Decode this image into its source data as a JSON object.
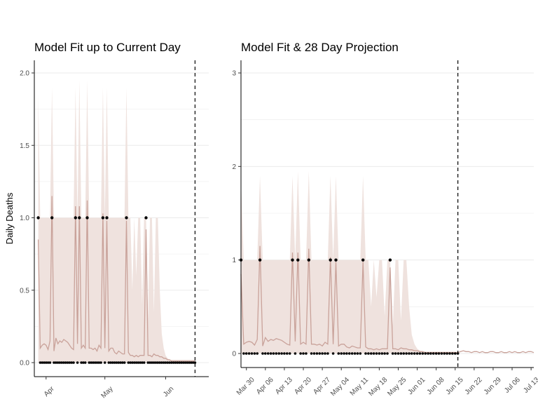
{
  "chart_data": [
    {
      "type": "line",
      "title": "Model Fit up to Current Day",
      "xlabel": "",
      "ylabel": "Daily Deaths",
      "x_range": [
        "2020-03-26",
        "2020-06-23"
      ],
      "ylim": [
        0,
        2.0
      ],
      "y_ticks": [
        {
          "value": 0.0,
          "label": "0.0"
        },
        {
          "value": 0.5,
          "label": "0.5"
        },
        {
          "value": 1.0,
          "label": "1.0"
        },
        {
          "value": 1.5,
          "label": "1.5"
        },
        {
          "value": 2.0,
          "label": "2.0"
        }
      ],
      "x_ticks": [
        {
          "date": "2020-04-01",
          "label": "Apr"
        },
        {
          "date": "2020-05-01",
          "label": "May"
        },
        {
          "date": "2020-06-01",
          "label": "Jun"
        }
      ],
      "current_day": "2020-06-16",
      "grid": true,
      "legend": "none"
    },
    {
      "type": "line",
      "title": "Model Fit & 28 Day Projection",
      "xlabel": "",
      "ylabel": "",
      "x_range": [
        "2020-03-28",
        "2020-07-14"
      ],
      "ylim": [
        0,
        3
      ],
      "y_ticks": [
        {
          "value": 0,
          "label": "0"
        },
        {
          "value": 1,
          "label": "1"
        },
        {
          "value": 2,
          "label": "2"
        },
        {
          "value": 3,
          "label": "3"
        }
      ],
      "x_ticks": [
        {
          "date": "2020-03-30",
          "label": "Mar 30"
        },
        {
          "date": "2020-04-06",
          "label": "Apr 06"
        },
        {
          "date": "2020-04-13",
          "label": "Apr 13"
        },
        {
          "date": "2020-04-20",
          "label": "Apr 20"
        },
        {
          "date": "2020-04-27",
          "label": "Apr 27"
        },
        {
          "date": "2020-05-04",
          "label": "May 04"
        },
        {
          "date": "2020-05-11",
          "label": "May 11"
        },
        {
          "date": "2020-05-18",
          "label": "May 18"
        },
        {
          "date": "2020-05-25",
          "label": "May 25"
        },
        {
          "date": "2020-06-01",
          "label": "Jun 01"
        },
        {
          "date": "2020-06-08",
          "label": "Jun 08"
        },
        {
          "date": "2020-06-15",
          "label": "Jun 15"
        },
        {
          "date": "2020-06-22",
          "label": "Jun 22"
        },
        {
          "date": "2020-06-29",
          "label": "Jun 29"
        },
        {
          "date": "2020-07-06",
          "label": "Jul 06"
        },
        {
          "date": "2020-07-13",
          "label": "Jul 13"
        }
      ],
      "current_day": "2020-06-16",
      "grid": true,
      "legend": "none"
    }
  ],
  "observed": {
    "name": "",
    "start_date": "2020-03-28",
    "values": [
      1,
      0,
      0,
      0,
      0,
      0,
      0,
      1,
      0,
      0,
      0,
      0,
      0,
      0,
      0,
      0,
      0,
      0,
      0,
      1,
      0,
      1,
      0,
      0,
      0,
      1,
      0,
      0,
      0,
      0,
      0,
      0,
      0,
      1,
      0,
      1,
      0,
      0,
      0,
      0,
      0,
      0,
      0,
      0,
      0,
      1,
      0,
      0,
      0,
      0,
      0,
      0,
      0,
      0,
      0,
      1,
      0,
      0,
      0,
      0,
      0,
      0,
      0,
      0,
      0,
      0,
      0,
      0,
      0,
      0,
      0,
      0,
      0,
      0,
      0,
      0,
      0,
      0,
      0,
      0,
      0,
      0,
      0,
      0,
      0,
      0,
      0,
      0,
      0,
      0,
      0
    ]
  },
  "fitted": {
    "start_date": "2020-03-28",
    "values": [
      0.85,
      0.1,
      0.12,
      0.13,
      0.12,
      0.09,
      0.15,
      1.15,
      0.08,
      0.17,
      0.13,
      0.15,
      0.14,
      0.16,
      0.15,
      0.14,
      0.12,
      0.1,
      0.09,
      1.08,
      0.13,
      1.08,
      0.1,
      0.12,
      0.1,
      1.12,
      0.1,
      0.1,
      0.09,
      0.1,
      0.08,
      0.12,
      0.1,
      1.03,
      0.1,
      0.98,
      0.08,
      0.1,
      0.1,
      0.07,
      0.06,
      0.08,
      0.07,
      0.06,
      0.06,
      0.98,
      0.07,
      0.05,
      0.05,
      0.04,
      0.05,
      0.04,
      0.05,
      0.05,
      0.05,
      0.92,
      0.05,
      0.05,
      0.04,
      0.06,
      0.05,
      0.05,
      0.04,
      0.04,
      0.03,
      0.03,
      0.02,
      0.02,
      0.01,
      0.01,
      0.01,
      0.01,
      0.01,
      0.01,
      0.01,
      0.01,
      0.01,
      0.01,
      0.01,
      0.01,
      0.01,
      0.01,
      0.01,
      0.01,
      0.01,
      0.01,
      0.01,
      0.01,
      0.01,
      0.01,
      0.01
    ]
  },
  "projection": {
    "start_date": "2020-06-16",
    "values": [
      0.01,
      0.02,
      0.03,
      0.02,
      0.02,
      0.01,
      0.02,
      0.02,
      0.01,
      0.02,
      0.01,
      0.01,
      0.02,
      0.02,
      0.01,
      0.01,
      0.02,
      0.01,
      0.01,
      0.02,
      0.01,
      0.02,
      0.01,
      0.01,
      0.02,
      0.01,
      0.02,
      0.02,
      0.01
    ]
  },
  "interval": {
    "start_date": "2020-03-28",
    "upper": [
      1.85,
      1.0,
      1.0,
      1.0,
      1.0,
      1.0,
      1.0,
      1.9,
      1.0,
      1.0,
      1.0,
      1.0,
      1.0,
      1.0,
      1.0,
      1.0,
      1.0,
      1.0,
      1.0,
      1.9,
      1.0,
      1.95,
      1.0,
      1.0,
      1.0,
      1.95,
      1.0,
      1.0,
      1.0,
      1.0,
      1.0,
      1.0,
      1.0,
      1.9,
      1.0,
      1.9,
      1.0,
      1.0,
      1.0,
      1.0,
      1.0,
      1.0,
      1.0,
      1.0,
      1.0,
      1.9,
      1.0,
      1.0,
      0.5,
      1.0,
      0.6,
      1.0,
      1.0,
      0.4,
      1.0,
      1.0,
      0.3,
      1.0,
      1.0,
      0.35,
      1.0,
      1.0,
      0.5,
      0.2,
      0.1,
      0.05,
      0.03,
      0.02,
      0.02,
      0.02,
      0.02,
      0.02,
      0.02,
      0.02,
      0.02,
      0.02,
      0.02,
      0.02,
      0.02,
      0.02,
      0.02,
      0.02,
      0.02,
      0.02,
      0.02,
      0.02,
      0.02,
      0.02,
      0.02,
      0.02,
      0.02
    ]
  },
  "colors": {
    "fit_line": "#c9a29a",
    "interval_fill": "#efe2de",
    "point": "#000000",
    "grid": "#ebebeb",
    "axis": "#000000"
  }
}
